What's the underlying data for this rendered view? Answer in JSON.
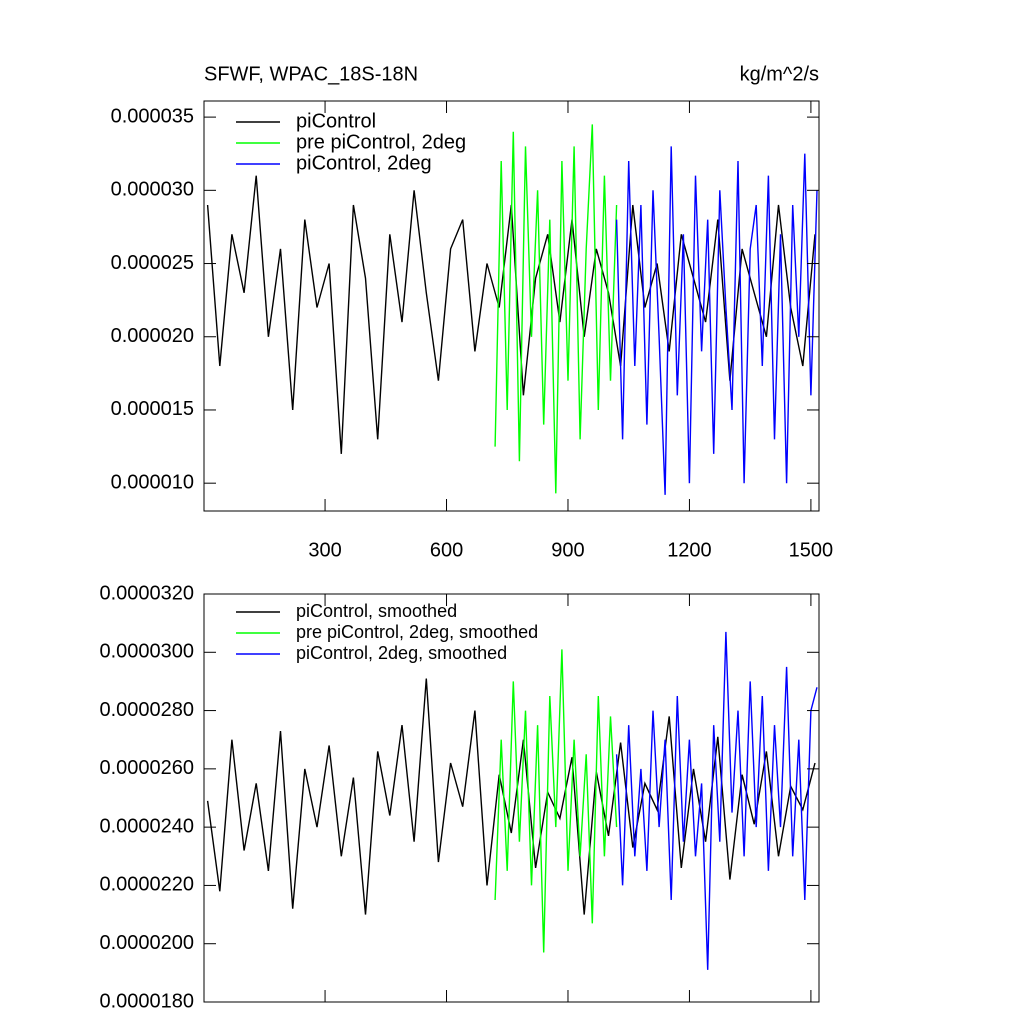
{
  "chart_data": [
    {
      "type": "line",
      "title": "SFWF, WPAC_18S-18N",
      "right_title": "kg/m^2/s",
      "xlim": [
        1,
        1520
      ],
      "xticks": [
        300,
        600,
        900,
        1200,
        1500
      ],
      "ylim": [
        8.1e-06,
        3.61e-05
      ],
      "yticks": [
        {
          "value": 3.5e-05,
          "label": "0.000035"
        },
        {
          "value": 3e-05,
          "label": "0.000030"
        },
        {
          "value": 2.5e-05,
          "label": "0.000025"
        },
        {
          "value": 2e-05,
          "label": "0.000020"
        },
        {
          "value": 1.5e-05,
          "label": "0.000015"
        },
        {
          "value": 1e-05,
          "label": "0.000010"
        }
      ],
      "series": [
        {
          "name": "piControl",
          "color": "#000000",
          "x": [
            10,
            40,
            70,
            100,
            130,
            160,
            190,
            220,
            250,
            280,
            310,
            340,
            370,
            400,
            430,
            460,
            490,
            520,
            550,
            580,
            610,
            640,
            670,
            700,
            730,
            760,
            790,
            820,
            850,
            880,
            910,
            940,
            970,
            1000,
            1030,
            1060,
            1090,
            1120,
            1150,
            1180,
            1210,
            1240,
            1270,
            1300,
            1330,
            1360,
            1390,
            1420,
            1450,
            1480,
            1510
          ],
          "values": [
            2.9e-05,
            1.8e-05,
            2.7e-05,
            2.3e-05,
            3.1e-05,
            2e-05,
            2.6e-05,
            1.5e-05,
            2.8e-05,
            2.2e-05,
            2.5e-05,
            1.2e-05,
            2.9e-05,
            2.4e-05,
            1.3e-05,
            2.7e-05,
            2.1e-05,
            3e-05,
            2.3e-05,
            1.7e-05,
            2.6e-05,
            2.8e-05,
            1.9e-05,
            2.5e-05,
            2.2e-05,
            2.9e-05,
            1.6e-05,
            2.4e-05,
            2.7e-05,
            2.1e-05,
            2.8e-05,
            2e-05,
            2.6e-05,
            2.3e-05,
            1.8e-05,
            2.9e-05,
            2.2e-05,
            2.5e-05,
            1.9e-05,
            2.7e-05,
            2.4e-05,
            2.1e-05,
            2.8e-05,
            1.7e-05,
            2.6e-05,
            2.3e-05,
            2e-05,
            2.9e-05,
            2.2e-05,
            1.8e-05,
            2.7e-05
          ]
        },
        {
          "name": "pre piControl, 2deg",
          "color": "#00ff00",
          "x": [
            720,
            735,
            750,
            765,
            780,
            795,
            810,
            825,
            840,
            855,
            870,
            885,
            900,
            915,
            930,
            945,
            960,
            975,
            990,
            1005,
            1020
          ],
          "values": [
            1.25e-05,
            3.2e-05,
            1.5e-05,
            3.4e-05,
            1.15e-05,
            3.3e-05,
            2e-05,
            3e-05,
            1.4e-05,
            2.8e-05,
            9.3e-06,
            3.2e-05,
            1.7e-05,
            3.3e-05,
            1.3e-05,
            2.6e-05,
            3.45e-05,
            1.5e-05,
            3.1e-05,
            1.7e-05,
            2.9e-05
          ]
        },
        {
          "name": "piControl, 2deg",
          "color": "#0000ff",
          "x": [
            1020,
            1035,
            1050,
            1065,
            1080,
            1095,
            1110,
            1125,
            1140,
            1155,
            1170,
            1185,
            1200,
            1215,
            1230,
            1245,
            1260,
            1275,
            1290,
            1305,
            1320,
            1335,
            1350,
            1365,
            1380,
            1395,
            1410,
            1425,
            1440,
            1455,
            1470,
            1485,
            1500,
            1515
          ],
          "values": [
            2.8e-05,
            1.3e-05,
            3.2e-05,
            1.8e-05,
            2.9e-05,
            1.4e-05,
            3e-05,
            2e-05,
            9.2e-06,
            3.3e-05,
            1.6e-05,
            2.7e-05,
            1e-05,
            3.1e-05,
            1.9e-05,
            2.8e-05,
            1.2e-05,
            3e-05,
            2.2e-05,
            1.5e-05,
            3.2e-05,
            1e-05,
            2.6e-05,
            2.9e-05,
            1.8e-05,
            3.1e-05,
            1.3e-05,
            2.7e-05,
            1e-05,
            2.9e-05,
            2e-05,
            3.25e-05,
            1.6e-05,
            3e-05
          ]
        }
      ]
    },
    {
      "type": "line",
      "xlim": [
        1,
        1520
      ],
      "xticks": [
        300,
        600,
        900,
        1200,
        1500
      ],
      "ylim": [
        1.8e-05,
        3.2e-05
      ],
      "yticks": [
        {
          "value": 3.2e-05,
          "label": "0.0000320"
        },
        {
          "value": 3e-05,
          "label": "0.0000300"
        },
        {
          "value": 2.8e-05,
          "label": "0.0000280"
        },
        {
          "value": 2.6e-05,
          "label": "0.0000260"
        },
        {
          "value": 2.4e-05,
          "label": "0.0000240"
        },
        {
          "value": 2.2e-05,
          "label": "0.0000220"
        },
        {
          "value": 2e-05,
          "label": "0.0000200"
        },
        {
          "value": 1.8e-05,
          "label": "0.0000180"
        }
      ],
      "series": [
        {
          "name": "piControl, smoothed",
          "color": "#000000",
          "x": [
            10,
            40,
            70,
            100,
            130,
            160,
            190,
            220,
            250,
            280,
            310,
            340,
            370,
            400,
            430,
            460,
            490,
            520,
            550,
            580,
            610,
            640,
            670,
            700,
            730,
            760,
            790,
            820,
            850,
            880,
            910,
            940,
            970,
            1000,
            1030,
            1060,
            1090,
            1120,
            1150,
            1180,
            1210,
            1240,
            1270,
            1300,
            1330,
            1360,
            1390,
            1420,
            1450,
            1480,
            1510
          ],
          "values": [
            2.49e-05,
            2.18e-05,
            2.7e-05,
            2.32e-05,
            2.55e-05,
            2.25e-05,
            2.73e-05,
            2.12e-05,
            2.6e-05,
            2.4e-05,
            2.68e-05,
            2.3e-05,
            2.57e-05,
            2.1e-05,
            2.66e-05,
            2.44e-05,
            2.75e-05,
            2.35e-05,
            2.91e-05,
            2.28e-05,
            2.62e-05,
            2.47e-05,
            2.8e-05,
            2.2e-05,
            2.58e-05,
            2.38e-05,
            2.7e-05,
            2.26e-05,
            2.52e-05,
            2.43e-05,
            2.64e-05,
            2.1e-05,
            2.59e-05,
            2.37e-05,
            2.69e-05,
            2.33e-05,
            2.55e-05,
            2.46e-05,
            2.78e-05,
            2.26e-05,
            2.6e-05,
            2.35e-05,
            2.71e-05,
            2.22e-05,
            2.58e-05,
            2.41e-05,
            2.66e-05,
            2.3e-05,
            2.54e-05,
            2.46e-05,
            2.62e-05
          ]
        },
        {
          "name": "pre piControl, 2deg, smoothed",
          "color": "#00ff00",
          "x": [
            720,
            735,
            750,
            765,
            780,
            795,
            810,
            825,
            840,
            855,
            870,
            885,
            900,
            915,
            930,
            945,
            960,
            975,
            990,
            1005,
            1020
          ],
          "values": [
            2.15e-05,
            2.7e-05,
            2.25e-05,
            2.9e-05,
            2.35e-05,
            2.8e-05,
            2.2e-05,
            2.75e-05,
            1.97e-05,
            2.85e-05,
            2.4e-05,
            3.01e-05,
            2.25e-05,
            2.7e-05,
            2.3e-05,
            2.65e-05,
            2.07e-05,
            2.85e-05,
            2.3e-05,
            2.78e-05,
            2.4e-05
          ]
        },
        {
          "name": "piControl, 2deg, smoothed",
          "color": "#0000ff",
          "x": [
            1020,
            1035,
            1050,
            1065,
            1080,
            1095,
            1110,
            1125,
            1140,
            1155,
            1170,
            1185,
            1200,
            1215,
            1230,
            1245,
            1260,
            1275,
            1290,
            1305,
            1320,
            1335,
            1350,
            1365,
            1380,
            1395,
            1410,
            1425,
            1440,
            1455,
            1470,
            1485,
            1500,
            1515
          ],
          "values": [
            2.65e-05,
            2.2e-05,
            2.75e-05,
            2.3e-05,
            2.6e-05,
            2.25e-05,
            2.8e-05,
            2.4e-05,
            2.7e-05,
            2.15e-05,
            2.85e-05,
            2.35e-05,
            2.7e-05,
            2.3e-05,
            2.55e-05,
            1.91e-05,
            2.75e-05,
            2.35e-05,
            3.07e-05,
            2.45e-05,
            2.8e-05,
            2.3e-05,
            2.9e-05,
            2.4e-05,
            2.85e-05,
            2.25e-05,
            2.75e-05,
            2.4e-05,
            2.95e-05,
            2.3e-05,
            2.7e-05,
            2.15e-05,
            2.8e-05,
            2.88e-05
          ]
        }
      ]
    }
  ]
}
